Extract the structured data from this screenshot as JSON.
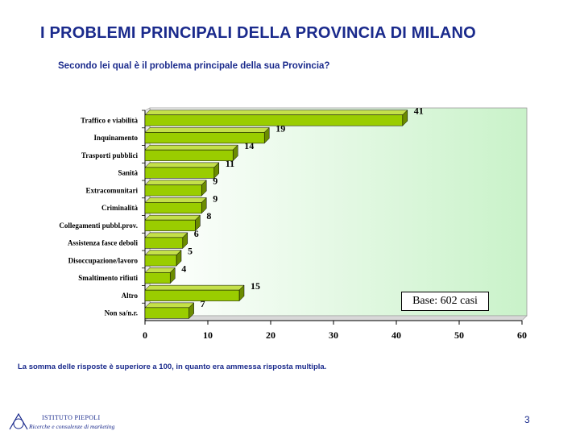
{
  "page": {
    "title": "I PROBLEMI PRINCIPALI DELLA PROVINCIA DI MILANO",
    "subtitle": "Secondo lei qual è il problema principale della sua Provincia?",
    "footnote": "La somma delle risposte è superiore a 100, in quanto era ammessa risposta multipla.",
    "page_number": "3",
    "logo": {
      "name": "ISTITUTO PIEPOLI",
      "tagline": "Ricerche e consulenze di marketing"
    },
    "base_note": "Base: 602 casi"
  },
  "chart_data": {
    "type": "bar",
    "orientation": "horizontal",
    "categories": [
      "Traffico e viabilità",
      "Inquinamento",
      "Trasporti pubblici",
      "Sanità",
      "Extracomunitari",
      "Criminalità",
      "Collegamenti pubbl.prov.",
      "Assistenza fasce deboli",
      "Disoccupazione/lavoro",
      "Smaltimento rifiuti",
      "Altro",
      "Non sa/n.r."
    ],
    "values": [
      41,
      19,
      14,
      11,
      9,
      9,
      8,
      6,
      5,
      4,
      15,
      7
    ],
    "x_ticks": [
      0,
      10,
      20,
      30,
      40,
      50,
      60
    ],
    "xlim": [
      0,
      60
    ],
    "grid": false,
    "legend": "none",
    "colors": {
      "bar_face": "#9acd00",
      "bar_top": "#c4e04a",
      "bar_side": "#6b8c00",
      "plot_bg_from": "#ffffff",
      "plot_bg_to": "#c9f2c9"
    }
  }
}
